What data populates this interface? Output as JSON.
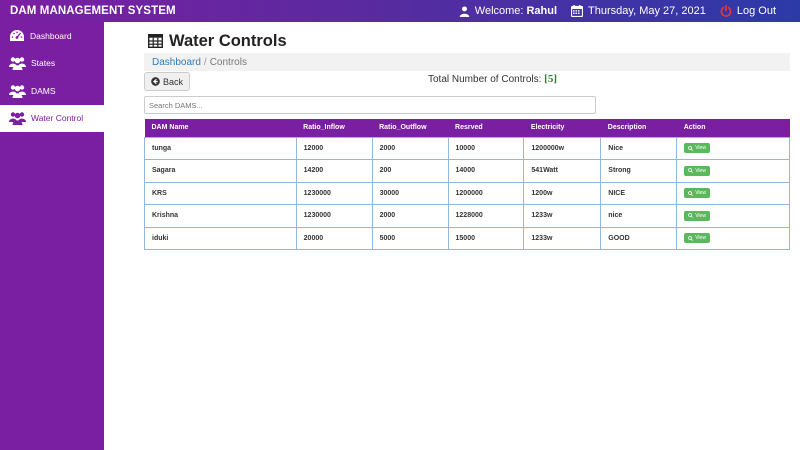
{
  "app": {
    "title": "DAM MANAGEMENT SYSTEM"
  },
  "header": {
    "welcome_label": "Welcome:",
    "user_name": "Rahul",
    "date": "Thursday, May 27, 2021",
    "logout_label": "Log Out",
    "logout_color": "#e53935"
  },
  "sidebar": {
    "items": [
      {
        "label": "Dashboard",
        "icon": "dashboard-gauge-icon"
      },
      {
        "label": "States",
        "icon": "users-icon"
      },
      {
        "label": "DAMS",
        "icon": "users-icon"
      },
      {
        "label": "Water Control",
        "icon": "users-icon",
        "active": true
      }
    ]
  },
  "page": {
    "title": "Water Controls",
    "title_icon": "table-icon",
    "breadcrumb": {
      "link": "Dashboard",
      "separator": "/",
      "current": "Controls"
    },
    "back_label": "Back",
    "total_label": "Total Number of Controls:",
    "total_count": "[5]",
    "search_placeholder": "Search DAMS..."
  },
  "table": {
    "columns": [
      "DAM Name",
      "Ratio_Inflow",
      "Ratio_Outflow",
      "Resrved",
      "Electricity",
      "Description",
      "Action"
    ],
    "rows": [
      [
        "tunga",
        "12000",
        "2000",
        "10000",
        "1200000w",
        "Nice"
      ],
      [
        "Sagara",
        "14200",
        "200",
        "14000",
        "541Watt",
        "Strong"
      ],
      [
        "KRS",
        "1230000",
        "30000",
        "1200000",
        "1200w",
        "NICE"
      ],
      [
        "Krishna",
        "1230000",
        "2000",
        "1228000",
        "1233w",
        "nice"
      ],
      [
        "iduki",
        "20000",
        "5000",
        "15000",
        "1233w",
        "GOOD"
      ]
    ],
    "action_label": "View",
    "action_color": "#5cb85c"
  },
  "colors": {
    "accent": "#7b1fa2",
    "header_gradient_end": "#2c3aa8",
    "link": "#337ab7"
  }
}
